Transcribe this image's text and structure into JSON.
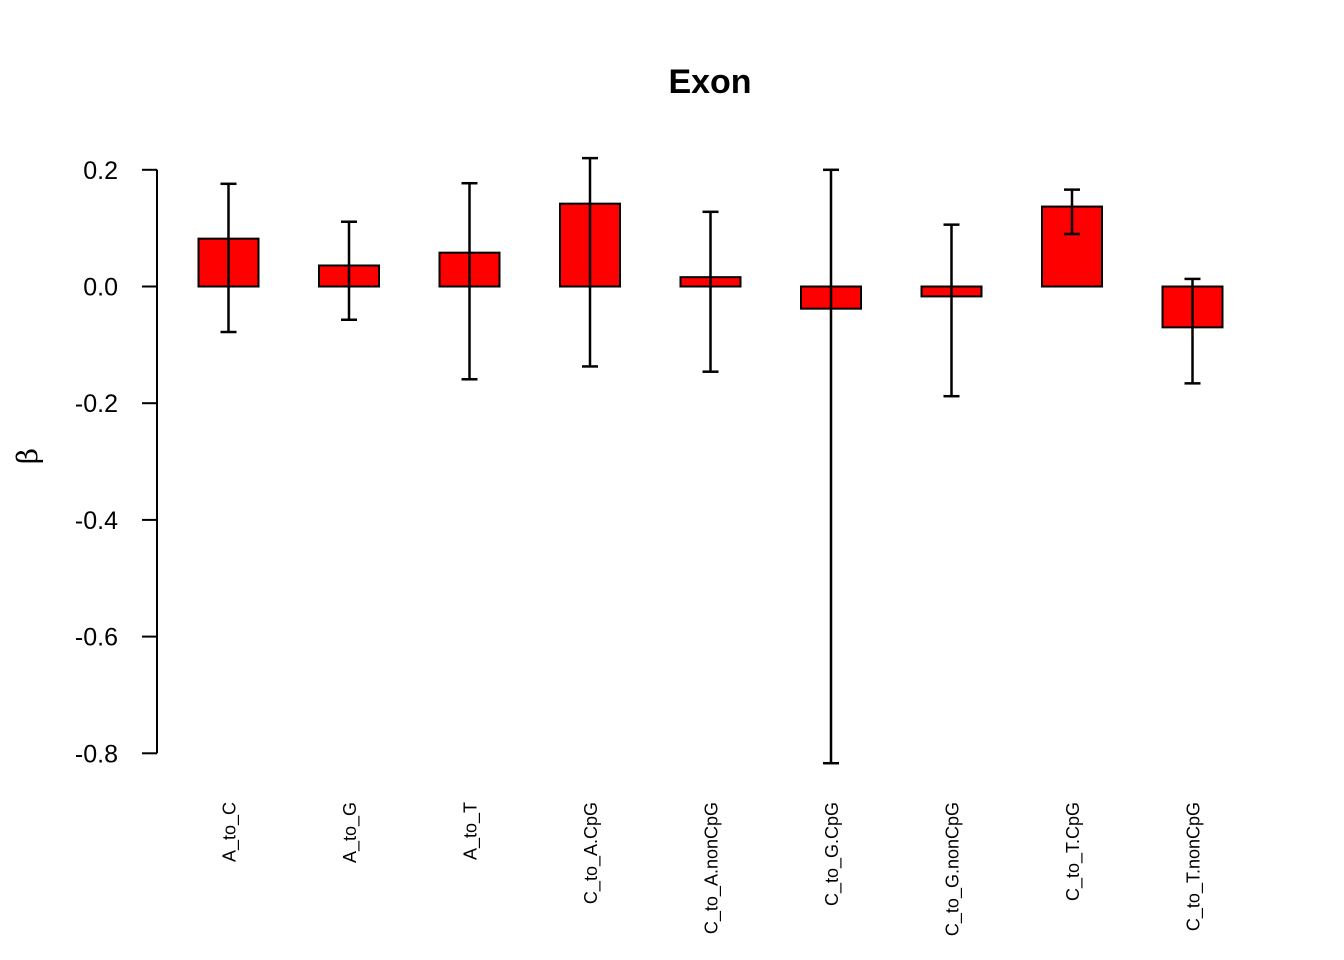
{
  "chart_data": {
    "type": "bar",
    "title": "Exon",
    "xlabel": "",
    "ylabel": "β",
    "ylim": [
      -0.8,
      0.2
    ],
    "yticks": [
      "0.2",
      "0.0",
      "-0.2",
      "-0.4",
      "-0.6",
      "-0.8"
    ],
    "grid": false,
    "legend": "none",
    "bar_color": "#ff0000",
    "categories": [
      "A_to_C",
      "A_to_G",
      "A_to_T",
      "C_to_A.CpG",
      "C_to_A.nonCpG",
      "C_to_G.CpG",
      "C_to_G.nonCpG",
      "C_to_T.CpG",
      "C_to_T.nonCpG"
    ],
    "values": [
      0.082,
      0.036,
      0.058,
      0.142,
      0.016,
      -0.038,
      -0.017,
      0.137,
      -0.07
    ],
    "error_lower": [
      -0.078,
      -0.057,
      -0.159,
      -0.137,
      -0.146,
      -0.817,
      -0.188,
      0.09,
      -0.166
    ],
    "error_upper": [
      0.176,
      0.111,
      0.177,
      0.22,
      0.128,
      0.2,
      0.106,
      0.166,
      0.013
    ]
  }
}
